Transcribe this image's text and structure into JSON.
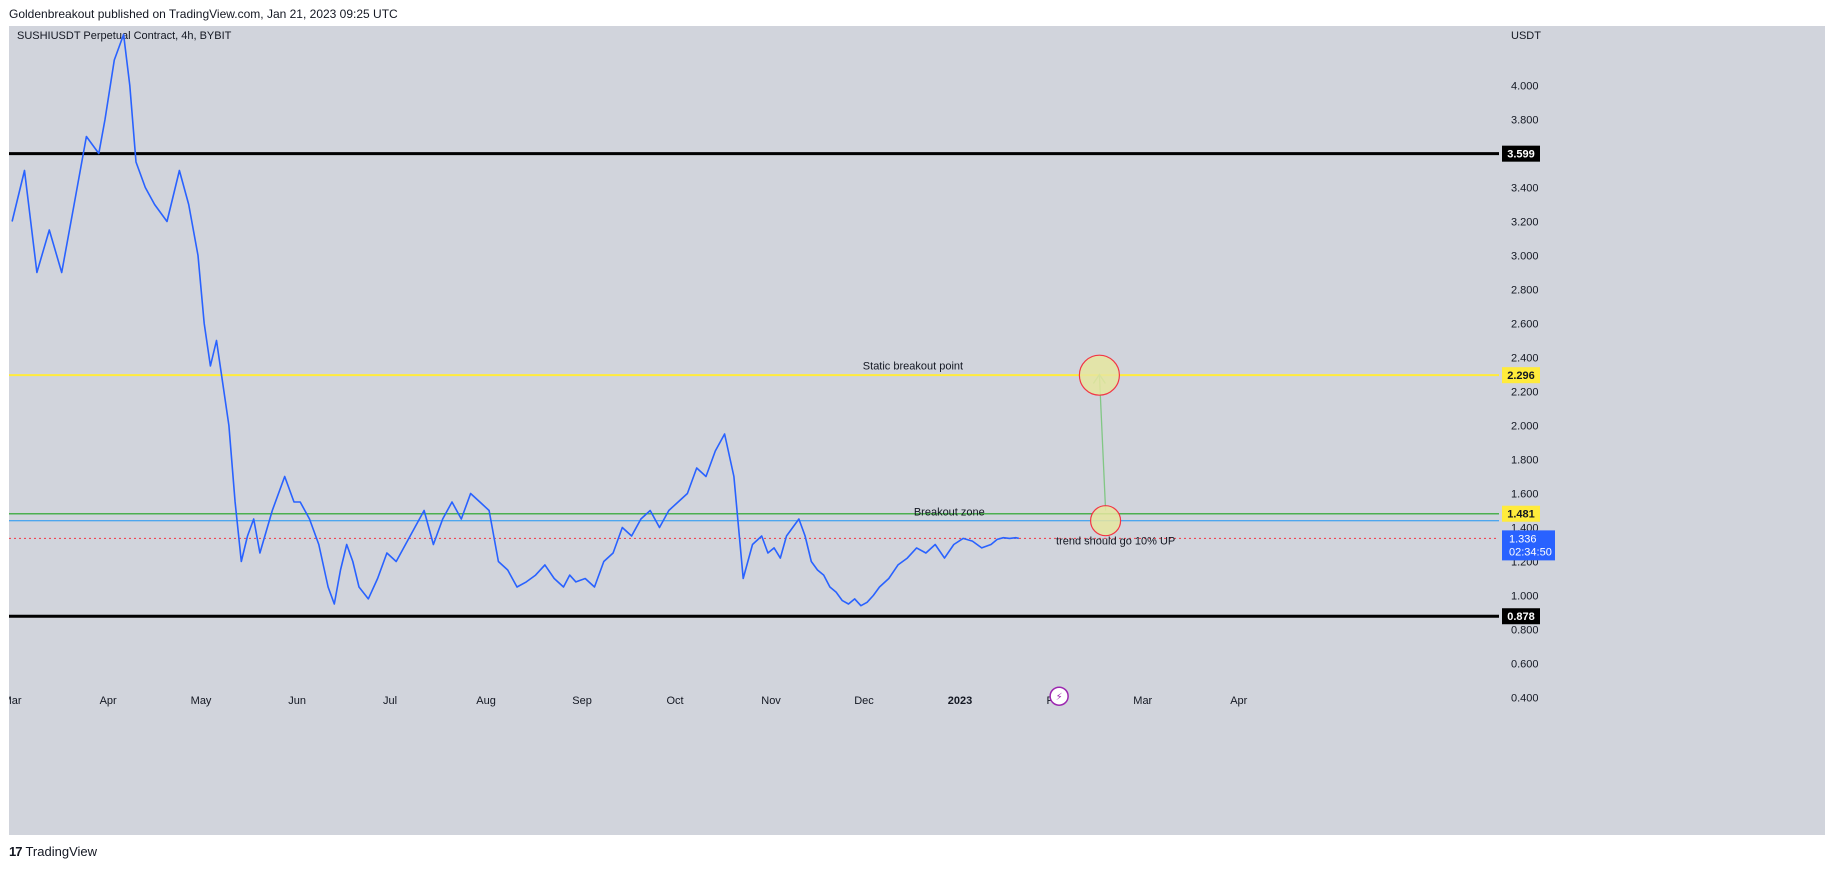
{
  "header": {
    "publisher_line": "Goldenbreakout published on TradingView.com, Jan 21, 2023 09:25 UTC"
  },
  "footer": {
    "logo_mark": "17",
    "brand": "TradingView"
  },
  "colors": {
    "plot_background": "#d1d4dc",
    "price_line": "#2962ff",
    "support_resistance": "#000000",
    "breakout_line": "#ffeb3b",
    "zone_green": "#4caf50",
    "zone_blue": "#2196f3",
    "current_price_dotted": "#f23645",
    "circle_fill": "#e6e6a0",
    "circle_stroke": "#f23645",
    "arrow": "#81c784",
    "current_badge": "#2962ff"
  },
  "chart_data": {
    "type": "line",
    "symbol_line": "SUSHIUSDT Perpetual Contract, 4h, BYBIT",
    "currency": "USDT",
    "ylim": [
      0.35,
      4.35
    ],
    "y_ticks": [
      {
        "value": 4.0,
        "label": "4.000"
      },
      {
        "value": 3.8,
        "label": "3.800"
      },
      {
        "value": 3.4,
        "label": "3.400"
      },
      {
        "value": 3.2,
        "label": "3.200"
      },
      {
        "value": 3.0,
        "label": "3.000"
      },
      {
        "value": 2.8,
        "label": "2.800"
      },
      {
        "value": 2.6,
        "label": "2.600"
      },
      {
        "value": 2.4,
        "label": "2.400"
      },
      {
        "value": 2.2,
        "label": "2.200"
      },
      {
        "value": 2.0,
        "label": "2.000"
      },
      {
        "value": 1.8,
        "label": "1.800"
      },
      {
        "value": 1.6,
        "label": "1.600"
      },
      {
        "value": 1.4,
        "label": "1.400"
      },
      {
        "value": 1.2,
        "label": "1.200"
      },
      {
        "value": 1.0,
        "label": "1.000"
      },
      {
        "value": 0.8,
        "label": "0.800"
      },
      {
        "value": 0.6,
        "label": "0.600"
      },
      {
        "value": 0.4,
        "label": "0.400"
      }
    ],
    "x_ticks": [
      {
        "t": 0,
        "label": "Mar",
        "bold": false
      },
      {
        "t": 31,
        "label": "Apr",
        "bold": false
      },
      {
        "t": 61,
        "label": "May",
        "bold": false
      },
      {
        "t": 92,
        "label": "Jun",
        "bold": false
      },
      {
        "t": 122,
        "label": "Jul",
        "bold": false
      },
      {
        "t": 153,
        "label": "Aug",
        "bold": false
      },
      {
        "t": 184,
        "label": "Sep",
        "bold": false
      },
      {
        "t": 214,
        "label": "Oct",
        "bold": false
      },
      {
        "t": 245,
        "label": "Nov",
        "bold": false
      },
      {
        "t": 275,
        "label": "Dec",
        "bold": false
      },
      {
        "t": 306,
        "label": "2023",
        "bold": true
      },
      {
        "t": 337,
        "label": "Feb",
        "bold": false
      },
      {
        "t": 365,
        "label": "Mar",
        "bold": false
      },
      {
        "t": 396,
        "label": "Apr",
        "bold": false
      }
    ],
    "x_range_days": [
      -1,
      480
    ],
    "series": [
      {
        "t": [
          0,
          4,
          8,
          12,
          16,
          20,
          24,
          28,
          30,
          33,
          36,
          38,
          40,
          43,
          46,
          50,
          54,
          57,
          60,
          62,
          64,
          66,
          68,
          70,
          72,
          74,
          76,
          78,
          80,
          84,
          88,
          91,
          93,
          96,
          99,
          102,
          104,
          106,
          108,
          110,
          112,
          115,
          118,
          121,
          124,
          127,
          130,
          133,
          136,
          139,
          142,
          145,
          148,
          151,
          154,
          157,
          160,
          163,
          166,
          169,
          172,
          175,
          178,
          180,
          182,
          185,
          188,
          191,
          194,
          197,
          200,
          203,
          206,
          209,
          212,
          215,
          218,
          221,
          224,
          227,
          230,
          233,
          236,
          239,
          242,
          244,
          246,
          248,
          250,
          252,
          254,
          256,
          258,
          260,
          262,
          264,
          266,
          268,
          270,
          272,
          274,
          276,
          278,
          280,
          283,
          286,
          289,
          292,
          295,
          298,
          301,
          304,
          307,
          310,
          313,
          316,
          318,
          320,
          322,
          324,
          325
        ],
        "values": [
          3.2,
          3.5,
          2.9,
          3.15,
          2.9,
          3.3,
          3.7,
          3.6,
          3.8,
          4.15,
          4.3,
          4.0,
          3.55,
          3.4,
          3.3,
          3.2,
          3.5,
          3.3,
          3.0,
          2.6,
          2.35,
          2.5,
          2.25,
          2.0,
          1.55,
          1.2,
          1.35,
          1.45,
          1.25,
          1.5,
          1.7,
          1.55,
          1.55,
          1.45,
          1.3,
          1.05,
          0.95,
          1.15,
          1.3,
          1.2,
          1.05,
          0.98,
          1.1,
          1.25,
          1.2,
          1.3,
          1.4,
          1.5,
          1.3,
          1.45,
          1.55,
          1.45,
          1.6,
          1.55,
          1.5,
          1.2,
          1.15,
          1.05,
          1.08,
          1.12,
          1.18,
          1.1,
          1.05,
          1.12,
          1.08,
          1.1,
          1.05,
          1.2,
          1.25,
          1.4,
          1.35,
          1.45,
          1.5,
          1.4,
          1.5,
          1.55,
          1.6,
          1.75,
          1.7,
          1.85,
          1.95,
          1.7,
          1.1,
          1.3,
          1.35,
          1.25,
          1.28,
          1.22,
          1.35,
          1.4,
          1.45,
          1.35,
          1.2,
          1.15,
          1.12,
          1.05,
          1.02,
          0.97,
          0.95,
          0.98,
          0.94,
          0.96,
          1.0,
          1.05,
          1.1,
          1.18,
          1.22,
          1.28,
          1.25,
          1.3,
          1.22,
          1.3,
          1.336,
          1.32,
          1.28,
          1.3,
          1.33,
          1.34,
          1.336,
          1.34,
          1.336
        ]
      }
    ],
    "horizontal_levels": [
      {
        "value": 3.599,
        "label": "3.599",
        "color": "#000000",
        "badge_bg": "#000000",
        "badge_fg": "#ffffff"
      },
      {
        "value": 2.296,
        "label": "2.296",
        "color": "#ffeb3b",
        "badge_bg": "#ffeb3b",
        "badge_fg": "#131722"
      },
      {
        "value": 1.481,
        "label": "1.481",
        "color": "#4caf50",
        "badge_bg": "#ffeb3b",
        "badge_fg": "#131722"
      },
      {
        "value": 0.878,
        "label": "0.878",
        "color": "#000000",
        "badge_bg": "#000000",
        "badge_fg": "#ffffff"
      }
    ],
    "zone_line": {
      "value": 1.44,
      "color": "#2196f3"
    },
    "current_price": {
      "value": 1.336,
      "label": "1.336",
      "countdown": "02:34:50"
    },
    "annotations": [
      {
        "id": "static",
        "text": "Static breakout point",
        "t": 307,
        "value": 2.33
      },
      {
        "id": "zone",
        "text": "Breakout zone",
        "t": 314,
        "value": 1.47
      },
      {
        "id": "trend",
        "text": "trend should go 10% UP",
        "t": 337,
        "value": 1.3
      }
    ],
    "circles": [
      {
        "id": "upper",
        "t": 351,
        "value": 2.296
      },
      {
        "id": "lower",
        "t": 353,
        "value": 1.44
      }
    ],
    "arrow": {
      "from_t": 353,
      "from_value": 1.5,
      "to_t": 351,
      "to_value": 2.3
    },
    "event_marker": {
      "t": 338,
      "value": 0.39,
      "glyph": "⚡"
    }
  }
}
